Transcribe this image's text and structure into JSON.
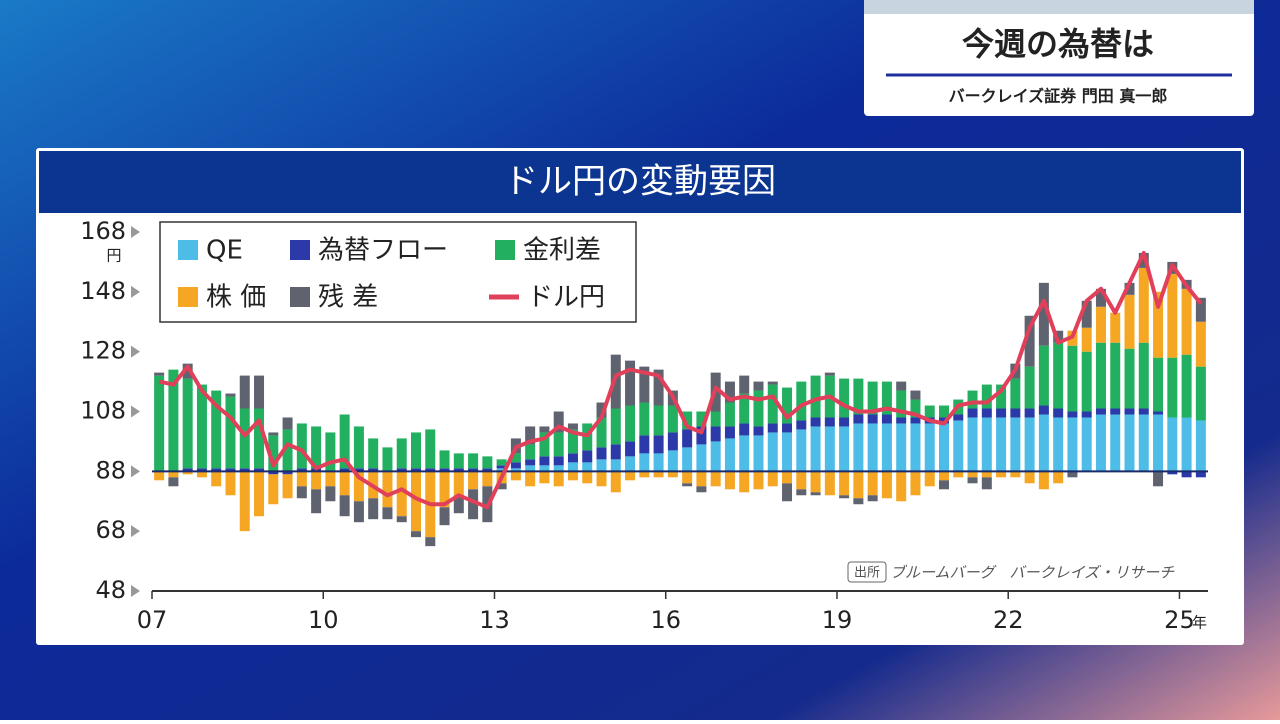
{
  "header": {
    "title": "今週の為替は",
    "speaker": "バークレイズ証券 門田 真一郎"
  },
  "chart_data": {
    "type": "bar",
    "title": "ドル円の変動要因",
    "source_tag": "出所",
    "source": "ブルームバーグ　バークレイズ・リサーチ",
    "y_unit": "円",
    "x_unit": "年",
    "baseline": 88,
    "xlim": [
      2007,
      2025.5
    ],
    "xticks": [
      {
        "value": 2007,
        "label": "07"
      },
      {
        "value": 2010,
        "label": "10"
      },
      {
        "value": 2013,
        "label": "13"
      },
      {
        "value": 2016,
        "label": "16"
      },
      {
        "value": 2019,
        "label": "19"
      },
      {
        "value": 2022,
        "label": "22"
      },
      {
        "value": 2025,
        "label": "25"
      }
    ],
    "ylim": [
      48,
      168
    ],
    "yticks": [
      48,
      68,
      88,
      108,
      128,
      148,
      168
    ],
    "x": [
      2007.125,
      2007.375,
      2007.625,
      2007.875,
      2008.125,
      2008.375,
      2008.625,
      2008.875,
      2009.125,
      2009.375,
      2009.625,
      2009.875,
      2010.125,
      2010.375,
      2010.625,
      2010.875,
      2011.125,
      2011.375,
      2011.625,
      2011.875,
      2012.125,
      2012.375,
      2012.625,
      2012.875,
      2013.125,
      2013.375,
      2013.625,
      2013.875,
      2014.125,
      2014.375,
      2014.625,
      2014.875,
      2015.125,
      2015.375,
      2015.625,
      2015.875,
      2016.125,
      2016.375,
      2016.625,
      2016.875,
      2017.125,
      2017.375,
      2017.625,
      2017.875,
      2018.125,
      2018.375,
      2018.625,
      2018.875,
      2019.125,
      2019.375,
      2019.625,
      2019.875,
      2020.125,
      2020.375,
      2020.625,
      2020.875,
      2021.125,
      2021.375,
      2021.625,
      2021.875,
      2022.125,
      2022.375,
      2022.625,
      2022.875,
      2023.125,
      2023.375,
      2023.625,
      2023.875,
      2024.125,
      2024.375,
      2024.625,
      2024.875,
      2025.125,
      2025.375
    ],
    "series": [
      {
        "name": "QE",
        "type": "bar",
        "color": "#4dbde8",
        "values": [
          0,
          0,
          0,
          0,
          0,
          0,
          0,
          0,
          0,
          0,
          0,
          0,
          0,
          0,
          0,
          0,
          0,
          0,
          0,
          0,
          0,
          0,
          0,
          0,
          1,
          1,
          2,
          2,
          2,
          3,
          3,
          4,
          4,
          5,
          6,
          6,
          7,
          8,
          9,
          10,
          11,
          12,
          12,
          13,
          13,
          14,
          15,
          15,
          15,
          16,
          16,
          16,
          16,
          16,
          16,
          16,
          17,
          18,
          18,
          18,
          18,
          18,
          19,
          18,
          18,
          18,
          19,
          19,
          19,
          19,
          19,
          18,
          18,
          17
        ]
      },
      {
        "name": "為替フロー",
        "type": "bar",
        "color": "#2b3aa8",
        "values": [
          0,
          0,
          1,
          1,
          1,
          1,
          1,
          1,
          -1,
          -1,
          1,
          1,
          0,
          1,
          1,
          1,
          0,
          1,
          1,
          1,
          1,
          1,
          1,
          1,
          1,
          2,
          2,
          3,
          3,
          3,
          4,
          4,
          5,
          5,
          6,
          6,
          6,
          6,
          6,
          5,
          4,
          4,
          3,
          3,
          3,
          3,
          3,
          3,
          3,
          3,
          3,
          3,
          2,
          2,
          2,
          2,
          2,
          3,
          3,
          3,
          3,
          3,
          3,
          3,
          2,
          2,
          2,
          2,
          2,
          2,
          1,
          -1,
          -2,
          -2
        ]
      },
      {
        "name": "金利差",
        "type": "bar",
        "color": "#22b060",
        "values": [
          32,
          34,
          30,
          28,
          26,
          24,
          20,
          20,
          12,
          14,
          15,
          14,
          13,
          18,
          14,
          10,
          8,
          10,
          12,
          13,
          6,
          5,
          5,
          4,
          2,
          3,
          5,
          8,
          8,
          8,
          9,
          10,
          12,
          12,
          11,
          10,
          9,
          6,
          5,
          5,
          8,
          10,
          12,
          13,
          12,
          13,
          14,
          14,
          13,
          12,
          11,
          11,
          9,
          6,
          4,
          4,
          5,
          6,
          8,
          8,
          10,
          14,
          20,
          22,
          22,
          20,
          22,
          22,
          20,
          22,
          18,
          20,
          21,
          18
        ]
      },
      {
        "name": "株 価",
        "type": "bar",
        "color": "#f5a623",
        "values": [
          -3,
          -2,
          -1,
          -2,
          -5,
          -8,
          -20,
          -15,
          -10,
          -8,
          -5,
          -6,
          -5,
          -8,
          -10,
          -9,
          -12,
          -15,
          -20,
          -22,
          -12,
          -8,
          -6,
          -5,
          -4,
          -3,
          -5,
          -4,
          -5,
          -3,
          -4,
          -5,
          -7,
          -3,
          -2,
          -2,
          -2,
          -4,
          -5,
          -5,
          -6,
          -7,
          -6,
          -5,
          -4,
          -6,
          -7,
          -8,
          -8,
          -9,
          -8,
          -9,
          -10,
          -8,
          -5,
          -3,
          -2,
          -2,
          -2,
          -2,
          -2,
          -4,
          -6,
          -4,
          5,
          8,
          12,
          10,
          18,
          25,
          22,
          28,
          22,
          15
        ]
      },
      {
        "name": "残 差",
        "type": "bar",
        "color": "#5f6370",
        "values": [
          1,
          -3,
          5,
          0,
          0,
          1,
          11,
          11,
          1,
          4,
          -4,
          -8,
          -5,
          -7,
          -7,
          -7,
          -4,
          -2,
          -2,
          -3,
          -6,
          -6,
          -10,
          -12,
          -2,
          5,
          6,
          2,
          7,
          2,
          0,
          5,
          18,
          15,
          12,
          12,
          5,
          -1,
          -2,
          13,
          7,
          6,
          3,
          1,
          -6,
          -2,
          -1,
          1,
          -1,
          -2,
          -2,
          0,
          3,
          3,
          0,
          -3,
          0,
          -2,
          -4,
          0,
          5,
          17,
          21,
          4,
          -2,
          9,
          6,
          0,
          4,
          5,
          -5,
          4,
          3,
          8
        ]
      },
      {
        "name": "ドル円",
        "type": "line",
        "color": "#e0405a",
        "values": [
          118,
          117,
          123,
          115,
          110,
          106,
          100,
          105,
          90,
          97,
          95,
          89,
          91,
          92,
          86,
          83,
          80,
          82,
          79,
          77,
          77,
          80,
          78,
          76,
          86,
          96,
          98,
          99,
          103,
          101,
          100,
          106,
          120,
          122,
          121,
          120,
          113,
          103,
          101,
          116,
          112,
          113,
          112,
          113,
          106,
          110,
          112,
          113,
          110,
          108,
          108,
          109,
          108,
          107,
          105,
          104,
          110,
          111,
          111,
          115,
          122,
          136,
          145,
          131,
          133,
          145,
          149,
          141,
          151,
          161,
          143,
          157,
          150,
          144
        ]
      }
    ]
  }
}
